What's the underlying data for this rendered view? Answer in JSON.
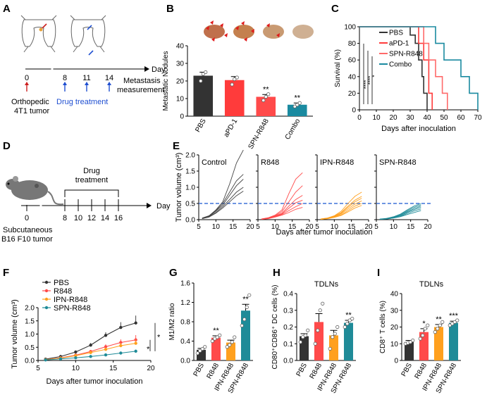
{
  "panels": {
    "A": "A",
    "B": "B",
    "C": "C",
    "D": "D",
    "E": "E",
    "F": "F",
    "G": "G",
    "H": "H",
    "I": "I"
  },
  "colors": {
    "PBS": "#333333",
    "aPD1": "#ff3b3b",
    "SPN": "#ff6a6a",
    "Combo": "#1a8aa0",
    "R848": "#ff4a4a",
    "IPN": "#ffa01e",
    "SPNR848": "#1f8b98",
    "control": "#444444",
    "threshold": "#3f73d9",
    "arrow_red": "#cc1f1f",
    "arrow_blue": "#1f4fd1",
    "timeline_blue": "#1f4fd1"
  },
  "schemeA": {
    "axis_label": "Day",
    "days": [
      "0",
      "8",
      "11",
      "14"
    ],
    "tumor_label_1": "Orthopedic",
    "tumor_label_2": "4T1 tumor",
    "drug_label": "Drug treatment",
    "measure_label_1": "Metastasis",
    "measure_label_2": "measurement"
  },
  "schemeD": {
    "axis_label": "Day",
    "days": [
      "0",
      "8",
      "10",
      "12",
      "14",
      "16"
    ],
    "treatment_1": "Drug",
    "treatment_2": "treatment",
    "tumor_label_1": "Subcutaneous",
    "tumor_label_2": "B16 F10 tumor"
  },
  "chart_data": [
    {
      "id": "B",
      "type": "bar",
      "title": "",
      "ylabel": "Metastatic Nodules",
      "xlabel": "",
      "ylim": [
        0,
        40
      ],
      "yticks": [
        "0",
        "10",
        "20",
        "30",
        "40"
      ],
      "categories": [
        "PBS",
        "aPD-1",
        "SPN-R848",
        "Combo"
      ],
      "values": [
        23,
        20.5,
        11,
        6.5
      ],
      "errors": [
        2,
        2,
        1.3,
        1
      ],
      "points": [
        [
          20,
          24,
          25
        ],
        [
          18,
          21,
          22
        ],
        [
          9,
          11,
          12.5
        ],
        [
          5.5,
          6.5,
          7.5
        ]
      ],
      "significance": [
        "",
        "",
        "**",
        "**"
      ]
    },
    {
      "id": "C",
      "type": "line",
      "title": "",
      "ylabel": "Survival (%)",
      "xlabel": "Days after inoculation",
      "xlim": [
        0,
        70
      ],
      "ylim": [
        0,
        100
      ],
      "xticks": [
        "0",
        "10",
        "20",
        "30",
        "40",
        "50",
        "60",
        "70"
      ],
      "yticks": [
        "0",
        "20",
        "40",
        "60",
        "80",
        "100"
      ],
      "series": [
        {
          "name": "PBS",
          "x": [
            0,
            30,
            30,
            33,
            33,
            35,
            35,
            37,
            37,
            38,
            38,
            40,
            40
          ],
          "y": [
            100,
            100,
            90,
            90,
            80,
            80,
            60,
            60,
            40,
            40,
            20,
            20,
            0
          ]
        },
        {
          "name": "aPD-1",
          "x": [
            0,
            35,
            35,
            38,
            38,
            41,
            41,
            43,
            43
          ],
          "y": [
            100,
            100,
            80,
            80,
            60,
            60,
            20,
            20,
            0
          ]
        },
        {
          "name": "SPN-R848",
          "x": [
            0,
            38,
            38,
            41,
            41,
            45,
            45,
            49,
            49,
            52,
            52
          ],
          "y": [
            100,
            100,
            80,
            80,
            60,
            60,
            40,
            40,
            20,
            20,
            0
          ]
        },
        {
          "name": "Combo",
          "x": [
            0,
            45,
            45,
            50,
            50,
            60,
            60,
            65,
            65,
            70,
            70
          ],
          "y": [
            100,
            100,
            80,
            80,
            60,
            60,
            40,
            40,
            20,
            20,
            0
          ]
        }
      ],
      "significance": [
        "****",
        "****",
        "*"
      ]
    },
    {
      "id": "E",
      "type": "line",
      "title": "",
      "ylabel": "Tumor volume (cm³)",
      "xlabel": "Days after tumor inoculation",
      "xlim": [
        5,
        20
      ],
      "ylim": [
        0,
        2
      ],
      "xticks": [
        "5",
        "10",
        "15",
        "20"
      ],
      "yticks": [
        "0.0",
        "0.5",
        "1.0",
        "1.5",
        "2.0"
      ],
      "threshold": 0.5,
      "subplots": [
        {
          "name": "Control",
          "curves": [
            [
              0.05,
              0.12,
              0.3,
              0.55,
              1.1,
              1.75,
              2.2
            ],
            [
              0.04,
              0.11,
              0.28,
              0.5,
              0.85,
              1.2,
              1.4
            ],
            [
              0.04,
              0.1,
              0.26,
              0.45,
              0.75,
              1.05,
              1.25
            ],
            [
              0.03,
              0.09,
              0.22,
              0.4,
              0.62,
              0.85,
              1.0
            ],
            [
              0.03,
              0.08,
              0.2,
              0.36,
              0.55,
              0.74,
              0.88
            ]
          ]
        },
        {
          "name": "R848",
          "curves": [
            [
              0.02,
              0.06,
              0.14,
              0.3,
              0.8,
              1.25,
              1.45
            ],
            [
              0.02,
              0.05,
              0.12,
              0.25,
              0.55,
              0.85,
              1.05
            ],
            [
              0.02,
              0.05,
              0.11,
              0.2,
              0.42,
              0.62,
              0.75
            ],
            [
              0.02,
              0.04,
              0.1,
              0.18,
              0.35,
              0.52,
              0.6
            ],
            [
              0.01,
              0.04,
              0.09,
              0.16,
              0.28,
              0.4,
              0.5
            ],
            [
              0.01,
              0.03,
              0.08,
              0.14,
              0.22,
              0.32,
              0.38
            ]
          ]
        },
        {
          "name": "IPN-R848",
          "curves": [
            [
              0.02,
              0.05,
              0.12,
              0.26,
              0.5,
              0.72,
              0.85
            ],
            [
              0.02,
              0.05,
              0.11,
              0.22,
              0.42,
              0.6,
              0.72
            ],
            [
              0.02,
              0.04,
              0.1,
              0.2,
              0.38,
              0.55,
              0.66
            ],
            [
              0.01,
              0.04,
              0.09,
              0.18,
              0.33,
              0.48,
              0.58
            ],
            [
              0.01,
              0.03,
              0.08,
              0.15,
              0.28,
              0.42,
              0.5
            ],
            [
              0.01,
              0.03,
              0.07,
              0.13,
              0.24,
              0.36,
              0.44
            ]
          ]
        },
        {
          "name": "SPN-R848",
          "curves": [
            [
              0.02,
              0.04,
              0.09,
              0.17,
              0.3,
              0.42,
              0.5
            ],
            [
              0.01,
              0.04,
              0.08,
              0.15,
              0.27,
              0.38,
              0.46
            ],
            [
              0.01,
              0.03,
              0.07,
              0.13,
              0.24,
              0.34,
              0.42
            ],
            [
              0.01,
              0.03,
              0.06,
              0.12,
              0.22,
              0.31,
              0.38
            ],
            [
              0.01,
              0.02,
              0.05,
              0.1,
              0.19,
              0.27,
              0.33
            ],
            [
              0.01,
              0.02,
              0.05,
              0.09,
              0.16,
              0.22,
              0.28
            ]
          ]
        }
      ],
      "days": [
        6,
        8,
        10,
        12,
        14,
        16,
        18
      ]
    },
    {
      "id": "F",
      "type": "line",
      "title": "",
      "ylabel": "Tumor volume (cm³)",
      "xlabel": "Days after tumor inoculation",
      "xlim": [
        5,
        20
      ],
      "ylim": [
        0,
        2
      ],
      "xticks": [
        "5",
        "10",
        "15",
        "20"
      ],
      "yticks": [
        "0.0",
        "0.5",
        "1.0",
        "1.5",
        "2.0"
      ],
      "x": [
        6,
        8,
        10,
        12,
        14,
        16,
        18
      ],
      "series": [
        {
          "name": "PBS",
          "values": [
            0.05,
            0.15,
            0.32,
            0.58,
            0.95,
            1.25,
            1.42
          ],
          "errors": [
            0.01,
            0.03,
            0.05,
            0.08,
            0.12,
            0.2,
            0.28
          ]
        },
        {
          "name": "R848",
          "values": [
            0.03,
            0.1,
            0.2,
            0.34,
            0.52,
            0.68,
            0.78
          ],
          "errors": [
            0.01,
            0.02,
            0.04,
            0.06,
            0.09,
            0.12,
            0.18
          ]
        },
        {
          "name": "IPN-R848",
          "values": [
            0.03,
            0.09,
            0.18,
            0.3,
            0.42,
            0.56,
            0.65
          ],
          "errors": [
            0.01,
            0.02,
            0.03,
            0.05,
            0.07,
            0.1,
            0.14
          ]
        },
        {
          "name": "SPN-R848",
          "values": [
            0.02,
            0.06,
            0.1,
            0.15,
            0.21,
            0.28,
            0.35
          ],
          "errors": [
            0.01,
            0.01,
            0.02,
            0.03,
            0.04,
            0.05,
            0.06
          ]
        }
      ],
      "significance": [
        "*",
        "*"
      ]
    },
    {
      "id": "G",
      "type": "bar",
      "title": "",
      "ylabel": "M1/M2 ratio",
      "xlabel": "",
      "ylim": [
        0,
        1.6
      ],
      "yticks": [
        "0.0",
        "0.4",
        "0.8",
        "1.2",
        "1.6"
      ],
      "categories": [
        "PBS",
        "R848",
        "IPN-R848",
        "SPN-R848"
      ],
      "values": [
        0.22,
        0.47,
        0.37,
        1.03
      ],
      "errors": [
        0.03,
        0.04,
        0.05,
        0.13
      ],
      "points": [
        [
          0.15,
          0.2,
          0.24,
          0.28
        ],
        [
          0.4,
          0.45,
          0.48,
          0.52
        ],
        [
          0.28,
          0.32,
          0.38,
          0.48
        ],
        [
          0.72,
          0.85,
          1.1,
          1.35
        ]
      ],
      "significance": [
        "",
        "**",
        "",
        "**"
      ]
    },
    {
      "id": "H",
      "type": "bar",
      "title": "TDLNs",
      "ylabel": "CD80⁺CD86⁺ DC cells (%)",
      "xlabel": "",
      "ylim": [
        0,
        0.4
      ],
      "yticks": [
        "0.0",
        "0.1",
        "0.2",
        "0.3",
        "0.4"
      ],
      "categories": [
        "PBS",
        "R848",
        "IPN-R848",
        "SPN-R848"
      ],
      "values": [
        0.145,
        0.23,
        0.15,
        0.225
      ],
      "errors": [
        0.015,
        0.05,
        0.03,
        0.015
      ],
      "points": [
        [
          0.11,
          0.14,
          0.15,
          0.18
        ],
        [
          0.1,
          0.18,
          0.3,
          0.34
        ],
        [
          0.07,
          0.14,
          0.16,
          0.2
        ],
        [
          0.2,
          0.22,
          0.24,
          0.25
        ]
      ],
      "significance": [
        "",
        "",
        "",
        "**"
      ]
    },
    {
      "id": "I",
      "type": "bar",
      "title": "TDLNs",
      "ylabel": "CD8⁺ T cells (%)",
      "xlabel": "",
      "ylim": [
        0,
        40
      ],
      "yticks": [
        "0",
        "10",
        "20",
        "30",
        "40"
      ],
      "categories": [
        "PBS",
        "R848",
        "IPN-R848",
        "SPN-R848"
      ],
      "values": [
        11,
        17,
        20,
        22.5
      ],
      "errors": [
        1,
        2,
        1.5,
        1
      ],
      "points": [
        [
          10,
          10.5,
          11,
          12
        ],
        [
          13,
          15,
          19,
          21
        ],
        [
          17,
          19,
          21,
          23
        ],
        [
          21,
          22,
          23,
          24
        ]
      ],
      "significance": [
        "",
        "*",
        "**",
        "***"
      ]
    }
  ]
}
